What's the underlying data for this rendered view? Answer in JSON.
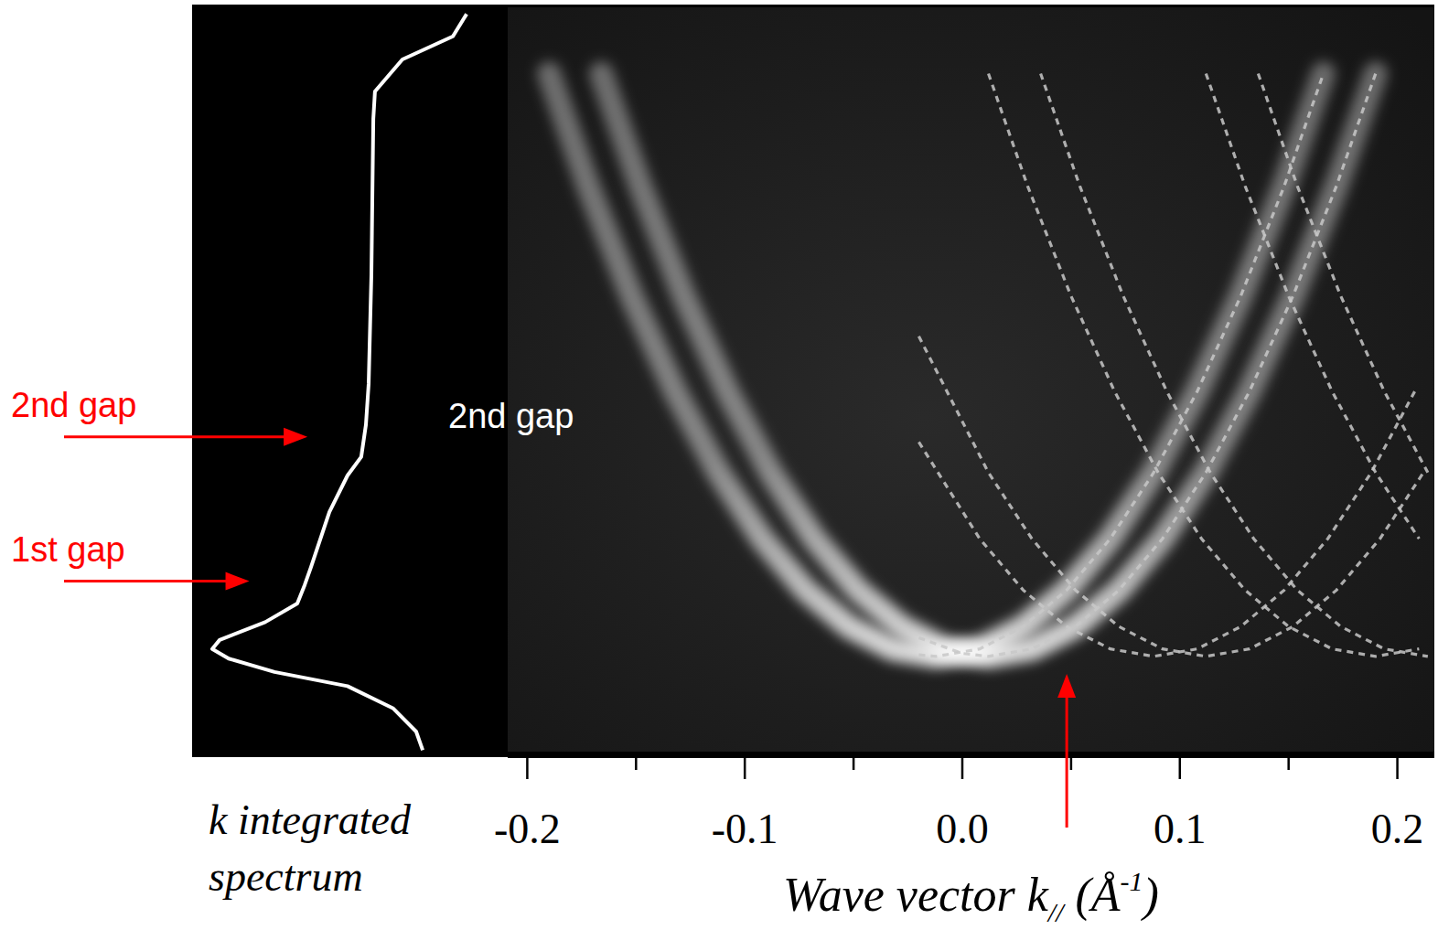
{
  "chart_data": {
    "type": "band_map",
    "x_label": [
      "Wave vector k",
      "//",
      " (Å",
      "-1",
      ")"
    ],
    "xlim": [
      -0.209,
      0.217
    ],
    "ylim": [
      0,
      1
    ],
    "xticks": [
      -0.2,
      -0.1,
      {
        "value": 0,
        "label": "0.0"
      },
      0.1,
      0.2
    ],
    "xminor_ticks": [
      -0.15,
      -0.05,
      0.05,
      0.15
    ],
    "tick_labels": "x",
    "series": [
      {
        "x": [
          -0.19,
          -0.172,
          -0.152,
          -0.132,
          -0.112,
          -0.092,
          -0.072,
          -0.052,
          -0.032,
          -0.012,
          0.008,
          0.028,
          0.048,
          0.068,
          0.088,
          0.108,
          0.128,
          0.148,
          0.166
        ],
        "values": [
          0.911,
          0.76,
          0.612,
          0.484,
          0.375,
          0.286,
          0.217,
          0.168,
          0.138,
          0.128,
          0.138,
          0.168,
          0.217,
          0.286,
          0.375,
          0.484,
          0.612,
          0.76,
          0.911
        ],
        "color": "#ffffff",
        "line_style": "solid"
      },
      {
        "x": [
          -0.166,
          -0.148,
          -0.128,
          -0.108,
          -0.088,
          -0.068,
          -0.048,
          -0.028,
          -0.008,
          0.012,
          0.032,
          0.052,
          0.072,
          0.092,
          0.112,
          0.132,
          0.152,
          0.172,
          0.19
        ],
        "values": [
          0.911,
          0.76,
          0.612,
          0.484,
          0.375,
          0.286,
          0.217,
          0.168,
          0.138,
          0.128,
          0.138,
          0.168,
          0.217,
          0.286,
          0.375,
          0.484,
          0.612,
          0.76,
          0.911
        ],
        "color": "#ffffff",
        "line_style": "solid"
      },
      {
        "x": [
          -0.02,
          -0.012,
          0.008,
          0.028,
          0.048,
          0.068,
          0.088,
          0.108,
          0.128,
          0.148,
          0.166
        ],
        "values": [
          0.13,
          0.128,
          0.138,
          0.168,
          0.217,
          0.286,
          0.375,
          0.484,
          0.612,
          0.76,
          0.911
        ],
        "color": "#c8c8c8",
        "line_style": "dashed"
      },
      {
        "x": [
          -0.02,
          0,
          0.012,
          0.032,
          0.052,
          0.072,
          0.092,
          0.112,
          0.132,
          0.152,
          0.172,
          0.19
        ],
        "values": [
          0.153,
          0.132,
          0.128,
          0.138,
          0.168,
          0.217,
          0.286,
          0.375,
          0.484,
          0.612,
          0.76,
          0.911
        ],
        "color": "#c8c8c8",
        "line_style": "dashed"
      },
      {
        "x": [
          -0.02,
          0.008,
          0.028,
          0.048,
          0.068,
          0.088,
          0.108,
          0.128,
          0.148,
          0.168,
          0.188,
          0.208
        ],
        "values": [
          0.416,
          0.286,
          0.217,
          0.168,
          0.138,
          0.128,
          0.138,
          0.168,
          0.217,
          0.286,
          0.375,
          0.484
        ],
        "color": "#c8c8c8",
        "line_style": "dashed"
      },
      {
        "x": [
          -0.02,
          0.012,
          0.032,
          0.052,
          0.072,
          0.092,
          0.112,
          0.132,
          0.152,
          0.172,
          0.192,
          0.212
        ],
        "values": [
          0.558,
          0.375,
          0.286,
          0.217,
          0.168,
          0.138,
          0.128,
          0.138,
          0.168,
          0.217,
          0.286,
          0.375
        ],
        "color": "#c8c8c8",
        "line_style": "dashed"
      },
      {
        "x": [
          0.012,
          0.03,
          0.05,
          0.07,
          0.09,
          0.11,
          0.13,
          0.15,
          0.17,
          0.19,
          0.21
        ],
        "values": [
          0.911,
          0.76,
          0.612,
          0.484,
          0.375,
          0.286,
          0.217,
          0.168,
          0.138,
          0.128,
          0.138
        ],
        "color": "#c8c8c8",
        "line_style": "dashed"
      },
      {
        "x": [
          0.036,
          0.054,
          0.074,
          0.094,
          0.114,
          0.134,
          0.154,
          0.174,
          0.194,
          0.214
        ],
        "values": [
          0.911,
          0.76,
          0.612,
          0.484,
          0.375,
          0.286,
          0.217,
          0.168,
          0.138,
          0.128
        ],
        "color": "#c8c8c8",
        "line_style": "dashed"
      },
      {
        "x": [
          0.112,
          0.13,
          0.15,
          0.17,
          0.19,
          0.21
        ],
        "values": [
          0.911,
          0.76,
          0.612,
          0.484,
          0.375,
          0.286
        ],
        "color": "#c8c8c8",
        "line_style": "dashed"
      },
      {
        "x": [
          0.136,
          0.154,
          0.174,
          0.194,
          0.214
        ],
        "values": [
          0.911,
          0.76,
          0.612,
          0.484,
          0.375
        ],
        "color": "#c8c8c8",
        "line_style": "dashed"
      }
    ],
    "spectrum": {
      "label": "k integrated spectrum",
      "energy": [
        0.991,
        0.961,
        0.93,
        0.887,
        0.85,
        0.641,
        0.494,
        0.439,
        0.396,
        0.371,
        0.322,
        0.248,
        0.224,
        0.199,
        0.174,
        0.15,
        0.138,
        0.125,
        0.107,
        0.088,
        0.058,
        0.027,
        0.002
      ],
      "intensity": [
        0.033,
        0.083,
        0.267,
        0.367,
        0.373,
        0.38,
        0.39,
        0.4,
        0.417,
        0.467,
        0.533,
        0.6,
        0.623,
        0.65,
        0.767,
        0.933,
        0.96,
        0.9,
        0.733,
        0.467,
        0.3,
        0.217,
        0.193
      ],
      "intensity_lim": [
        0,
        1
      ],
      "color": "#ffffff"
    },
    "annotations": [
      {
        "text": "2nd gap",
        "energy": 0.423,
        "color": "#ff0000",
        "marker": "arrow"
      },
      {
        "text": "1st gap",
        "energy": 0.229,
        "color": "#ff0000",
        "marker": "arrow"
      },
      {
        "text": "2nd gap",
        "energy": 0.451,
        "color": "#ffffff"
      },
      {
        "k": 0.048,
        "color": "#ff0000",
        "marker": "arrow"
      }
    ]
  }
}
